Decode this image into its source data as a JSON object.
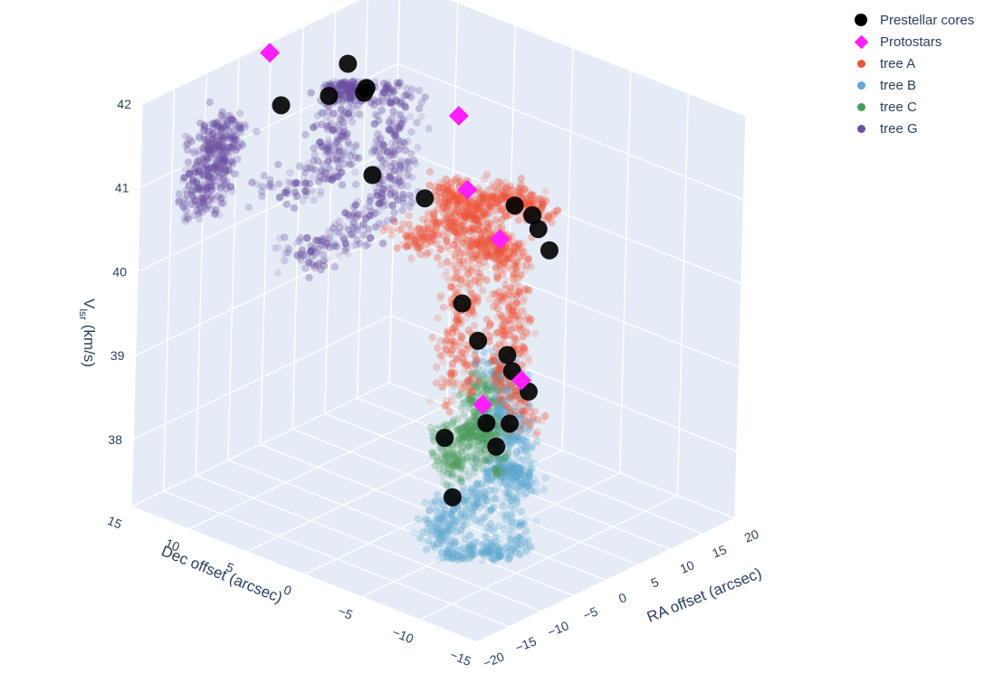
{
  "legend": {
    "items": [
      {
        "label": "Prestellar cores",
        "color": "#000000",
        "symbol": "circle-large"
      },
      {
        "label": "Protostars",
        "color": "#ff1fff",
        "symbol": "diamond"
      },
      {
        "label": "tree A",
        "color": "#ef553b",
        "symbol": "circle"
      },
      {
        "label": "tree B",
        "color": "#60a9d0",
        "symbol": "circle"
      },
      {
        "label": "tree C",
        "color": "#4a9a5c",
        "symbol": "circle"
      },
      {
        "label": "tree G",
        "color": "#6b4fa0",
        "symbol": "circle"
      }
    ]
  },
  "chart_data": {
    "type": "scatter3d",
    "axes": {
      "x": {
        "title": "RA offset (arcsec)",
        "ticks": [
          "20",
          "15",
          "10",
          "5",
          "0",
          "−5",
          "−10",
          "−15",
          "−20"
        ],
        "range": [
          -20,
          20
        ]
      },
      "y": {
        "title": "Dec offset (arcsec)",
        "ticks": [
          "15",
          "10",
          "5",
          "0",
          "−5",
          "−10",
          "−15"
        ],
        "range": [
          -15,
          15
        ]
      },
      "z": {
        "title_main": "V",
        "title_sub": "lsr",
        "title_rest": " (km/s)",
        "ticks": [
          "42",
          "41",
          "40",
          "39",
          "38"
        ],
        "range": [
          37.2,
          42.0
        ]
      }
    },
    "grid": true,
    "legend_position": "top-right",
    "series": [
      {
        "name": "tree A",
        "color": "#ef553b"
      },
      {
        "name": "tree B",
        "color": "#60a9d0"
      },
      {
        "name": "tree C",
        "color": "#4a9a5c"
      },
      {
        "name": "tree G",
        "color": "#6b4fa0"
      }
    ],
    "prestellar_cores": [
      {
        "ra": 3,
        "dec": 10,
        "v": 41.9
      },
      {
        "ra": 2,
        "dec": 8,
        "v": 41.7
      },
      {
        "ra": 6,
        "dec": 10,
        "v": 41.5
      },
      {
        "ra": 2,
        "dec": 11,
        "v": 41.5
      },
      {
        "ra": 0,
        "dec": 14,
        "v": 41.3
      },
      {
        "ra": 0,
        "dec": 6,
        "v": 40.9
      },
      {
        "ra": 1,
        "dec": 2,
        "v": 40.8
      },
      {
        "ra": 6,
        "dec": -3,
        "v": 40.8
      },
      {
        "ra": 7,
        "dec": -4,
        "v": 40.7
      },
      {
        "ra": 8,
        "dec": -4,
        "v": 40.5
      },
      {
        "ra": 8,
        "dec": -5,
        "v": 40.3
      },
      {
        "ra": 0,
        "dec": -2,
        "v": 39.8
      },
      {
        "ra": -1,
        "dec": -4,
        "v": 39.5
      },
      {
        "ra": 0,
        "dec": -6,
        "v": 39.4
      },
      {
        "ra": -1,
        "dec": -7,
        "v": 39.3
      },
      {
        "ra": -2,
        "dec": -9,
        "v": 39.2
      },
      {
        "ra": -3,
        "dec": -8,
        "v": 38.8
      },
      {
        "ra": -3,
        "dec": -6,
        "v": 38.7
      },
      {
        "ra": -5,
        "dec": -8,
        "v": 38.6
      },
      {
        "ra": -4,
        "dec": -3,
        "v": 38.4
      },
      {
        "ra": -8,
        "dec": -6,
        "v": 38.0
      }
    ],
    "protostars": [
      {
        "ra": -2,
        "dec": 14,
        "v": 42.0
      },
      {
        "ra": 6,
        "dec": 2,
        "v": 41.6
      },
      {
        "ra": 4,
        "dec": 0,
        "v": 40.9
      },
      {
        "ra": 2,
        "dec": -4,
        "v": 40.6
      },
      {
        "ra": -5,
        "dec": -10,
        "v": 39.5
      },
      {
        "ra": 0,
        "dec": -4,
        "v": 38.7
      }
    ]
  }
}
